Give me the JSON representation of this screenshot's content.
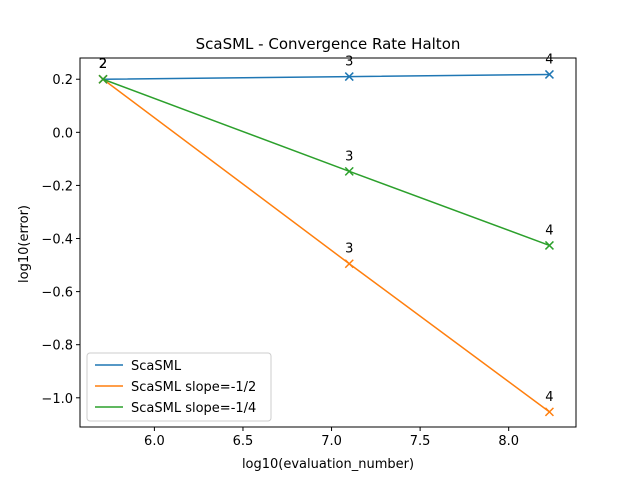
{
  "chart_data": {
    "type": "line",
    "title": "ScaSML - Convergence Rate Halton",
    "xlabel": "log10(evaluation_number)",
    "ylabel": "log10(error)",
    "xlim": [
      5.58,
      8.38
    ],
    "ylim": [
      -1.11,
      0.28
    ],
    "xticks": [
      6.0,
      6.5,
      7.0,
      7.5,
      8.0
    ],
    "xtick_labels": [
      "6.0",
      "6.5",
      "7.0",
      "7.5",
      "8.0"
    ],
    "yticks": [
      -1.0,
      -0.8,
      -0.6,
      -0.4,
      -0.2,
      0.0,
      0.2
    ],
    "ytick_labels": [
      "−1.0",
      "−0.8",
      "−0.6",
      "−0.4",
      "−0.2",
      "0.0",
      "0.2"
    ],
    "grid": false,
    "legend_position": "lower-left",
    "series": [
      {
        "name": "ScaSML",
        "color": "#1f77b4",
        "x": [
          5.71,
          7.1,
          8.23
        ],
        "y": [
          0.2,
          0.21,
          0.218
        ],
        "labels": [
          "2",
          "3",
          "4"
        ]
      },
      {
        "name": "ScaSML slope=-1/2",
        "color": "#ff7f0e",
        "x": [
          5.71,
          7.1,
          8.23
        ],
        "y": [
          0.2,
          -0.495,
          -1.053
        ],
        "labels": [
          "2",
          "3",
          "4"
        ]
      },
      {
        "name": "ScaSML slope=-1/4",
        "color": "#2ca02c",
        "x": [
          5.71,
          7.1,
          8.23
        ],
        "y": [
          0.2,
          -0.147,
          -0.426
        ],
        "labels": [
          "2",
          "3",
          "4"
        ]
      }
    ]
  }
}
